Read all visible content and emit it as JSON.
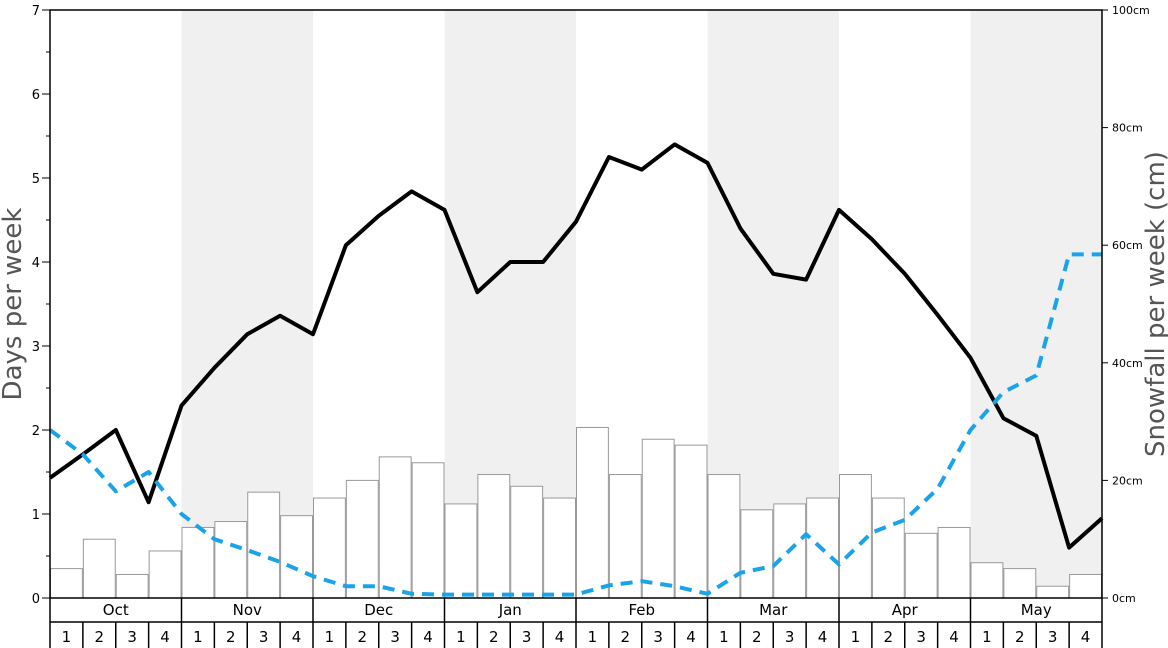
{
  "chart_data": {
    "type": "bar+line",
    "y_left_label": "Days per week",
    "y_right_label": "Snowfall per week (cm)",
    "y_left_ticks": [
      "0",
      "1",
      "2",
      "3",
      "4",
      "5",
      "6",
      "7"
    ],
    "y_right_ticks": [
      "0cm",
      "20cm",
      "40cm",
      "60cm",
      "80cm",
      "100cm"
    ],
    "y_left_range": [
      0,
      7
    ],
    "y_right_range": [
      0,
      100
    ],
    "months": [
      "Oct",
      "Nov",
      "Dec",
      "Jan",
      "Feb",
      "Mar",
      "Apr",
      "May"
    ],
    "weeks": [
      "1",
      "2",
      "3",
      "4"
    ],
    "snowfall_cm_per_week": [
      5,
      10,
      4,
      8,
      12,
      13,
      18,
      14,
      17,
      20,
      24,
      23,
      16,
      21,
      19,
      17,
      29,
      21,
      27,
      26,
      21,
      15,
      16,
      17,
      21,
      17,
      11,
      12,
      6,
      5,
      2,
      4
    ],
    "series": [
      {
        "style": "solid-black",
        "values": [
          1.43,
          1.71,
          2.0,
          1.14,
          2.29,
          2.74,
          3.14,
          3.36,
          3.14,
          4.2,
          4.55,
          4.84,
          4.62,
          3.64,
          4.0,
          4.0,
          4.48,
          5.25,
          5.1,
          5.4,
          5.18,
          4.4,
          3.86,
          3.79,
          4.62,
          4.27,
          3.86,
          3.37,
          2.86,
          2.14,
          1.93,
          0.6,
          0.95
        ]
      },
      {
        "style": "dashed-blue",
        "values": [
          2.0,
          1.71,
          1.27,
          1.5,
          1.0,
          0.7,
          0.57,
          0.43,
          0.26,
          0.14,
          0.14,
          0.05,
          0.04,
          0.04,
          0.04,
          0.04,
          0.04,
          0.15,
          0.2,
          0.14,
          0.05,
          0.3,
          0.38,
          0.76,
          0.4,
          0.78,
          0.93,
          1.3,
          2.0,
          2.45,
          2.65,
          4.09,
          4.09
        ]
      }
    ],
    "colors": {
      "shade": "#f0f0f0",
      "bar_fill": "#ffffff",
      "bar_stroke": "#999999",
      "line_black": "#000000",
      "line_blue": "#1aa3e8",
      "axis_label": "#555555"
    }
  }
}
